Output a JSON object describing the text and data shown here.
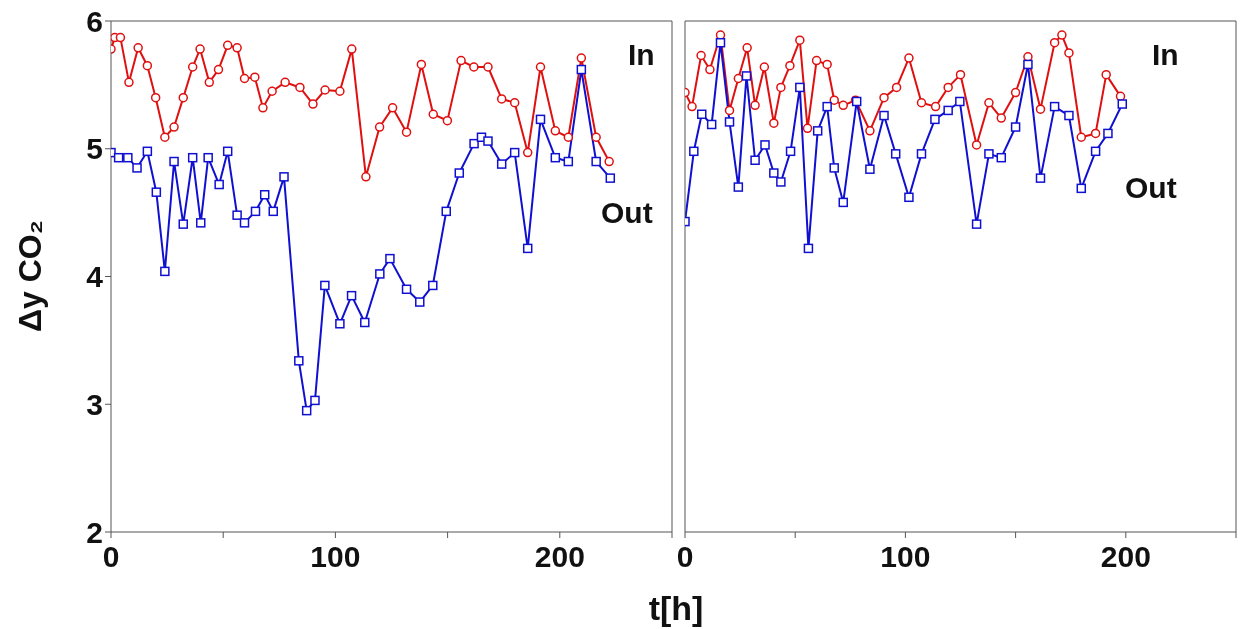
{
  "chart_data": [
    {
      "type": "line",
      "xlabel": "t[h]",
      "ylabel": "Δy CO₂",
      "xlim": [
        0,
        250
      ],
      "ylim": [
        2,
        6
      ],
      "xticks": [
        0,
        {
          "value": 50,
          "label": null
        },
        100,
        {
          "value": 150,
          "label": null
        },
        200,
        {
          "value": 250,
          "label": null
        }
      ],
      "yticks": [
        2,
        3,
        4,
        5,
        6
      ],
      "series": [
        {
          "name": "In",
          "color": "#e01010",
          "marker": "circle",
          "x": [
            0,
            1.7,
            4.2,
            8,
            12.1,
            16.2,
            19.9,
            24,
            28.1,
            32.2,
            36.4,
            39.7,
            43.8,
            47.9,
            52,
            56.2,
            59.5,
            64.1,
            67.7,
            71.8,
            77.6,
            84.2,
            90,
            95.4,
            102,
            107.3,
            113.6,
            119.7,
            125.5,
            131.7,
            138.3,
            143.6,
            149.9,
            156,
            161.7,
            168,
            174.1,
            179.9,
            185.7,
            191.4,
            198,
            203.8,
            209.6,
            216.2,
            222
          ],
          "values": [
            5.78,
            5.87,
            5.87,
            5.52,
            5.79,
            5.65,
            5.4,
            5.09,
            5.17,
            5.4,
            5.64,
            5.78,
            5.52,
            5.62,
            5.81,
            5.79,
            5.55,
            5.56,
            5.32,
            5.45,
            5.52,
            5.48,
            5.35,
            5.46,
            5.45,
            5.78,
            4.78,
            5.17,
            5.32,
            5.13,
            5.66,
            5.27,
            5.22,
            5.69,
            5.64,
            5.64,
            5.39,
            5.36,
            4.97,
            5.64,
            5.14,
            5.09,
            5.71,
            5.09,
            4.9
          ]
        },
        {
          "name": "Out",
          "color": "#1010d0",
          "marker": "square",
          "x": [
            0,
            3.4,
            7.5,
            11.6,
            16.2,
            20.2,
            24,
            28.1,
            32.2,
            36.4,
            40,
            43.3,
            48.2,
            52,
            56.2,
            59.5,
            64.4,
            68.5,
            72.3,
            77.1,
            83.7,
            87.2,
            90.9,
            95.3,
            102,
            107.2,
            113.1,
            119.8,
            124.3,
            131.7,
            137.6,
            143.4,
            149.4,
            155.2,
            161.8,
            165.1,
            168,
            174.1,
            179.9,
            185.7,
            191.4,
            198,
            203.8,
            209.6,
            216.2,
            222.5
          ],
          "values": [
            4.97,
            4.93,
            4.93,
            4.85,
            4.98,
            4.66,
            4.04,
            4.9,
            4.41,
            4.93,
            4.42,
            4.93,
            4.72,
            4.98,
            4.48,
            4.42,
            4.51,
            4.64,
            4.51,
            4.78,
            3.34,
            2.95,
            3.03,
            3.93,
            3.63,
            3.85,
            3.64,
            4.02,
            4.14,
            3.9,
            3.8,
            3.93,
            4.51,
            4.81,
            5.04,
            5.09,
            5.06,
            4.88,
            4.97,
            4.22,
            5.23,
            4.93,
            4.9,
            5.62,
            4.9,
            4.77
          ]
        }
      ]
    },
    {
      "type": "line",
      "xlim": [
        0,
        250
      ],
      "ylim": [
        2,
        6
      ],
      "tick_labels": "x",
      "xticks": [
        0,
        {
          "value": 50,
          "label": null
        },
        100,
        {
          "value": 150,
          "label": null
        },
        200,
        {
          "value": 250,
          "label": null
        }
      ],
      "yticks": [
        2,
        3,
        4,
        5,
        6
      ],
      "series": [
        {
          "name": "In",
          "color": "#e01010",
          "marker": "circle",
          "x": [
            0,
            3.2,
            7.3,
            11.3,
            16.1,
            20.2,
            24.2,
            28.2,
            31.8,
            36,
            40.3,
            43.5,
            47.6,
            52.1,
            55.6,
            59.7,
            64.5,
            67.7,
            71.8,
            77.4,
            83.9,
            90.3,
            96,
            101.6,
            107.3,
            113.7,
            119.4,
            125,
            132.3,
            137.9,
            143.5,
            150,
            155.6,
            161.3,
            167.7,
            171,
            174.2,
            179.8,
            186.3,
            191.1,
            197.6
          ],
          "values": [
            5.44,
            5.33,
            5.73,
            5.62,
            5.89,
            5.3,
            5.55,
            5.79,
            5.34,
            5.64,
            5.2,
            5.48,
            5.65,
            5.85,
            5.16,
            5.69,
            5.66,
            5.38,
            5.34,
            5.38,
            5.14,
            5.4,
            5.48,
            5.71,
            5.36,
            5.33,
            5.48,
            5.58,
            5.03,
            5.36,
            5.24,
            5.44,
            5.72,
            5.31,
            5.83,
            5.89,
            5.75,
            5.09,
            5.12,
            5.58,
            5.41
          ]
        },
        {
          "name": "Out",
          "color": "#1010d0",
          "marker": "square",
          "x": [
            0,
            4,
            7.6,
            12.1,
            16.1,
            20.2,
            24.2,
            27.9,
            31.8,
            36.3,
            40.3,
            43.5,
            47.9,
            52.1,
            56,
            60.2,
            64.5,
            67.7,
            71.8,
            77.9,
            83.9,
            90.3,
            95.6,
            101.6,
            107.3,
            113.4,
            119.4,
            124.7,
            132.3,
            137.9,
            143.5,
            150,
            155.6,
            161.3,
            167.7,
            174.2,
            179.8,
            186.3,
            191.9,
            198.4
          ],
          "values": [
            4.43,
            4.98,
            5.27,
            5.19,
            5.83,
            5.21,
            4.7,
            5.57,
            4.91,
            5.03,
            4.81,
            4.74,
            4.98,
            5.48,
            4.22,
            5.14,
            5.33,
            4.85,
            4.58,
            5.37,
            4.84,
            5.26,
            4.96,
            4.62,
            4.96,
            5.23,
            5.3,
            5.37,
            4.41,
            4.96,
            4.93,
            5.17,
            5.66,
            4.77,
            5.33,
            5.26,
            4.69,
            4.98,
            5.12,
            5.35
          ]
        }
      ]
    }
  ]
}
